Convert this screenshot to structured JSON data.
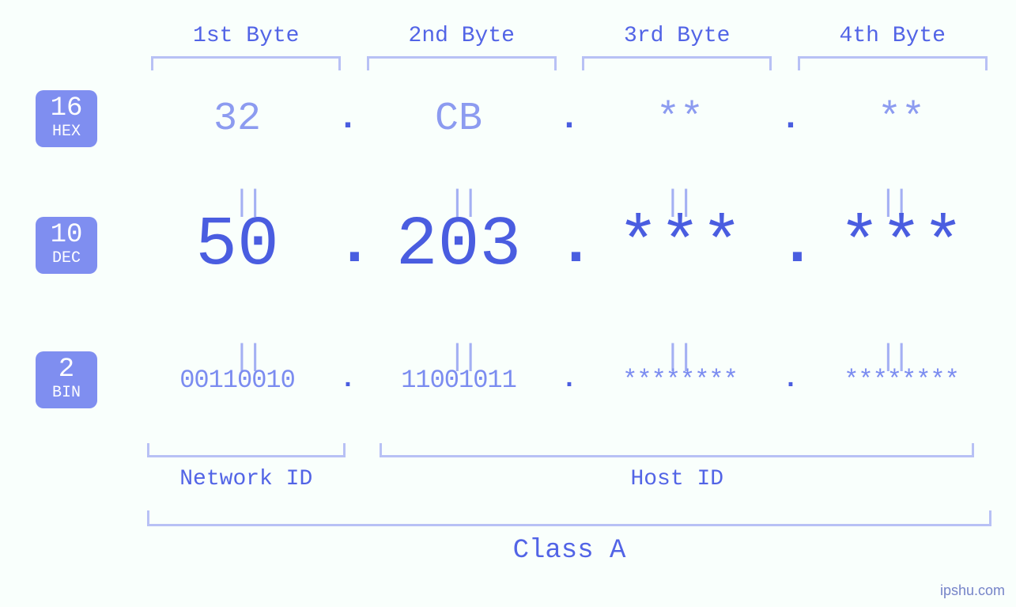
{
  "colors": {
    "background": "#f9fffc",
    "badge_bg": "#7f8ef0",
    "badge_fg": "#ffffff",
    "bracket": "#b8c1f5",
    "label_text": "#5264e6",
    "hex_text": "#8c9bf0",
    "dec_text": "#4a5de0",
    "bin_text": "#7b8cf0",
    "equals_text": "#a4b0f3",
    "separator_text": "#4a5de0",
    "watermark_text": "#7584c8"
  },
  "typography": {
    "font_family": "monospace",
    "byte_label_fontsize": 28,
    "hex_fontsize": 50,
    "dec_fontsize": 88,
    "bin_fontsize": 32,
    "equals_fontsize": 38,
    "bottom_label_fontsize": 28,
    "class_label_fontsize": 34,
    "badge_num_fontsize": 34,
    "badge_txt_fontsize": 20
  },
  "byte_headers": [
    "1st Byte",
    "2nd Byte",
    "3rd Byte",
    "4th Byte"
  ],
  "badges": {
    "hex": {
      "base": "16",
      "name": "HEX"
    },
    "dec": {
      "base": "10",
      "name": "DEC"
    },
    "bin": {
      "base": "2",
      "name": "BIN"
    }
  },
  "octets": {
    "hex": [
      "32",
      "CB",
      "**",
      "**"
    ],
    "dec": [
      "50",
      "203",
      "***",
      "***"
    ],
    "bin": [
      "00110010",
      "11001011",
      "********",
      "********"
    ]
  },
  "separator": ".",
  "equals_symbol": "||",
  "bottom_sections": {
    "network": {
      "label": "Network ID",
      "span_bytes": [
        0
      ]
    },
    "host": {
      "label": "Host ID",
      "span_bytes": [
        1,
        2,
        3
      ]
    }
  },
  "class_label": "Class A",
  "watermark": "ipshu.com"
}
